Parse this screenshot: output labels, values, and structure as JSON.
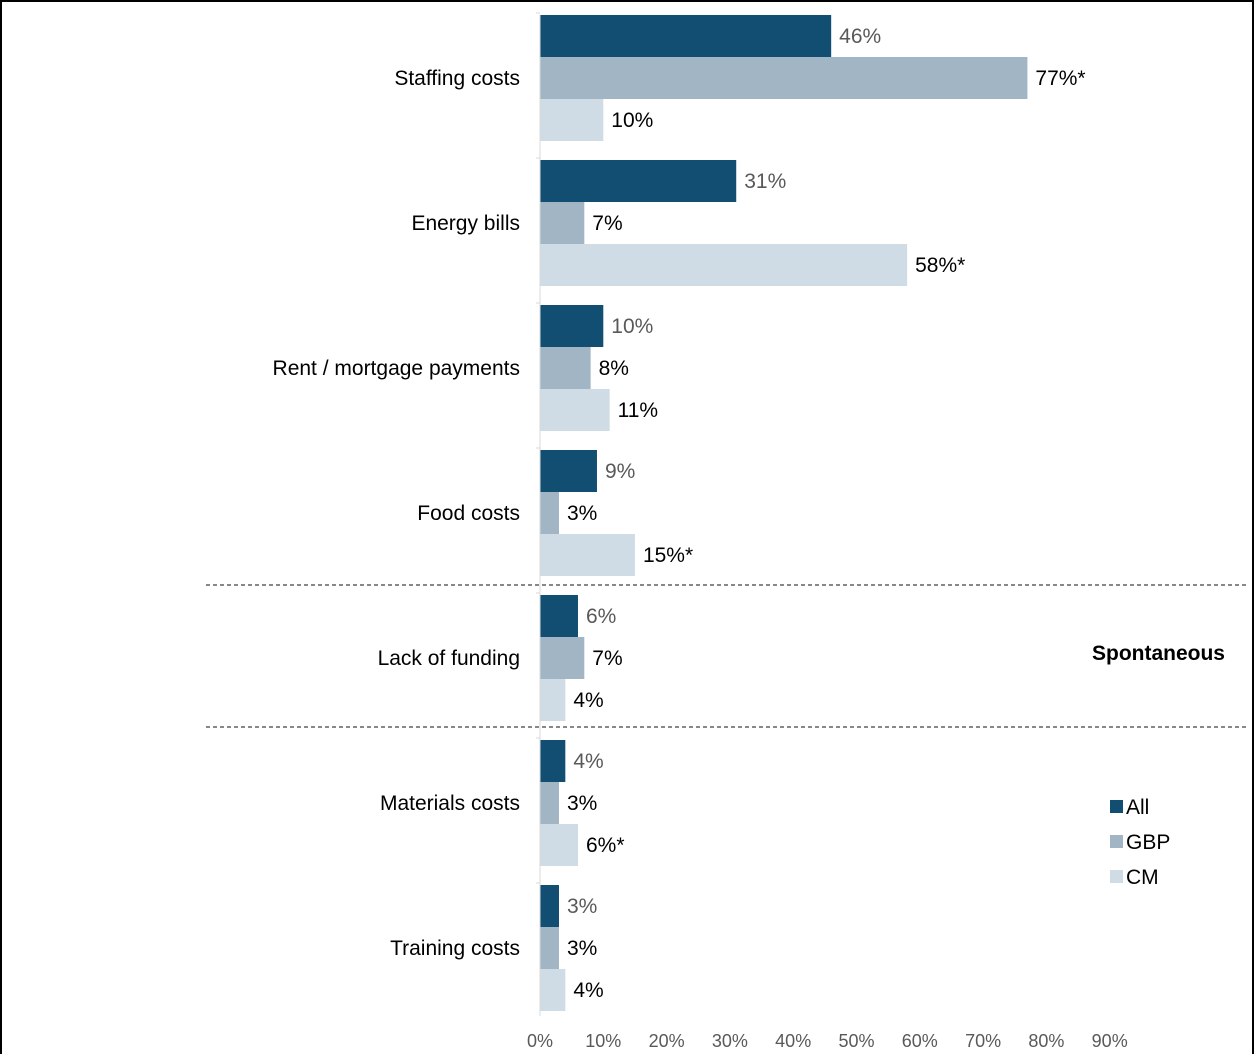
{
  "chart_data": {
    "type": "bar",
    "orientation": "horizontal",
    "categories": [
      "Staffing costs",
      "Energy bills",
      "Rent / mortgage payments",
      "Food costs",
      "Lack of funding",
      "Materials costs",
      "Training costs"
    ],
    "series": [
      {
        "name": "All",
        "color": "#124e72",
        "values": [
          46,
          31,
          10,
          9,
          6,
          4,
          3
        ],
        "labels": [
          "46%",
          "31%",
          "10%",
          "9%",
          "6%",
          "4%",
          "3%"
        ]
      },
      {
        "name": "GBP",
        "color": "#a1b5c5",
        "values": [
          77,
          7,
          8,
          3,
          7,
          3,
          3
        ],
        "labels": [
          "77%*",
          "7%",
          "8%",
          "3%",
          "7%",
          "3%",
          "3%"
        ]
      },
      {
        "name": "CM",
        "color": "#d0dce5",
        "values": [
          10,
          58,
          11,
          15,
          4,
          6,
          4
        ],
        "labels": [
          "10%",
          "58%*",
          "11%",
          "15%*",
          "4%",
          "6%*",
          "4%"
        ]
      }
    ],
    "xlim": [
      0,
      90
    ],
    "xticks": [
      "0%",
      "10%",
      "20%",
      "30%",
      "40%",
      "50%",
      "60%",
      "70%",
      "80%",
      "90%"
    ],
    "annotation": "Spontaneous",
    "legend_position": "right",
    "grid": false
  }
}
